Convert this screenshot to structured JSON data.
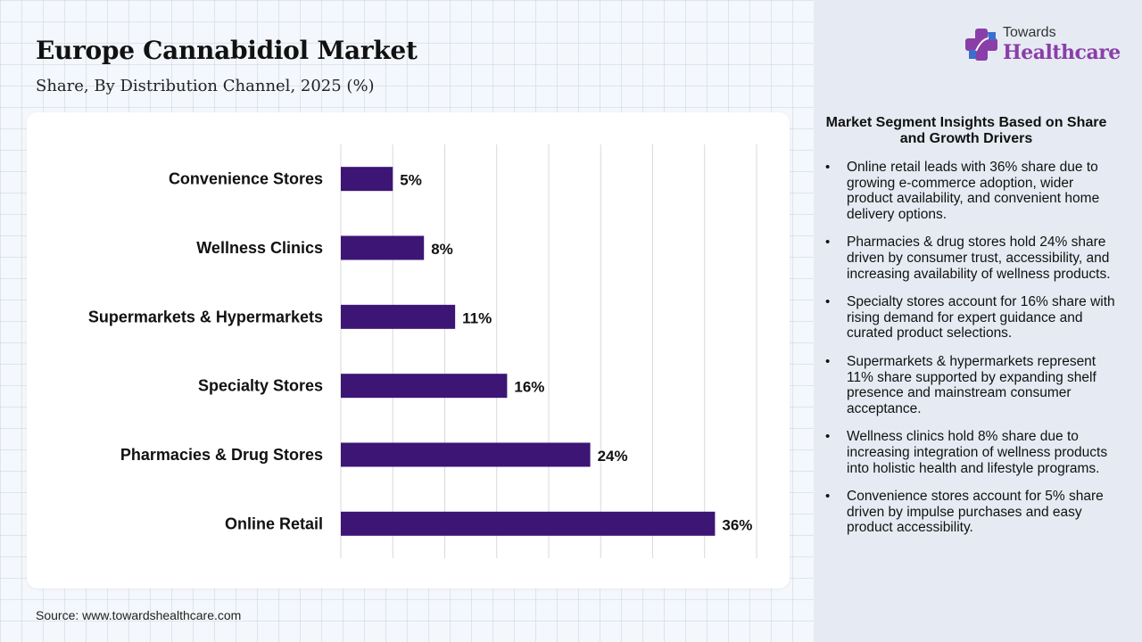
{
  "title": "Europe Cannabidiol Market",
  "subtitle": "Share, By Distribution Channel, 2025 (%)",
  "source": "Source: www.towardshealthcare.com",
  "logo": {
    "line1": "Towards",
    "line2": "Healthcare"
  },
  "insights": {
    "title": "Market Segment Insights Based on Share and Growth Drivers",
    "items": [
      "Online retail leads with 36% share due to growing e-commerce adoption, wider product availability, and convenient home delivery options.",
      "Pharmacies & drug stores hold 24% share driven by consumer trust, accessibility, and increasing availability of wellness products.",
      "Specialty stores account for 16% share with rising demand for expert guidance and curated product selections.",
      "Supermarkets & hypermarkets represent 11% share supported by expanding shelf presence and mainstream consumer acceptance.",
      "Wellness clinics hold 8% share due to increasing integration of wellness products into holistic health and lifestyle programs.",
      "Convenience stores account for 5% share driven by impulse purchases and easy product accessibility."
    ]
  },
  "colors": {
    "bar": "#3d1575",
    "logo_purple": "#8a3ea8",
    "logo_blue": "#3a6fd0"
  },
  "chart_data": {
    "type": "bar",
    "orientation": "horizontal",
    "categories": [
      "Convenience Stores",
      "Wellness Clinics",
      "Supermarkets & Hypermarkets",
      "Specialty Stores",
      "Pharmacies & Drug Stores",
      "Online Retail"
    ],
    "values": [
      5,
      8,
      11,
      16,
      24,
      36
    ],
    "value_labels": [
      "5%",
      "8%",
      "11%",
      "16%",
      "24%",
      "36%"
    ],
    "xlim": [
      0,
      40
    ],
    "grid": true,
    "unit": "%"
  }
}
